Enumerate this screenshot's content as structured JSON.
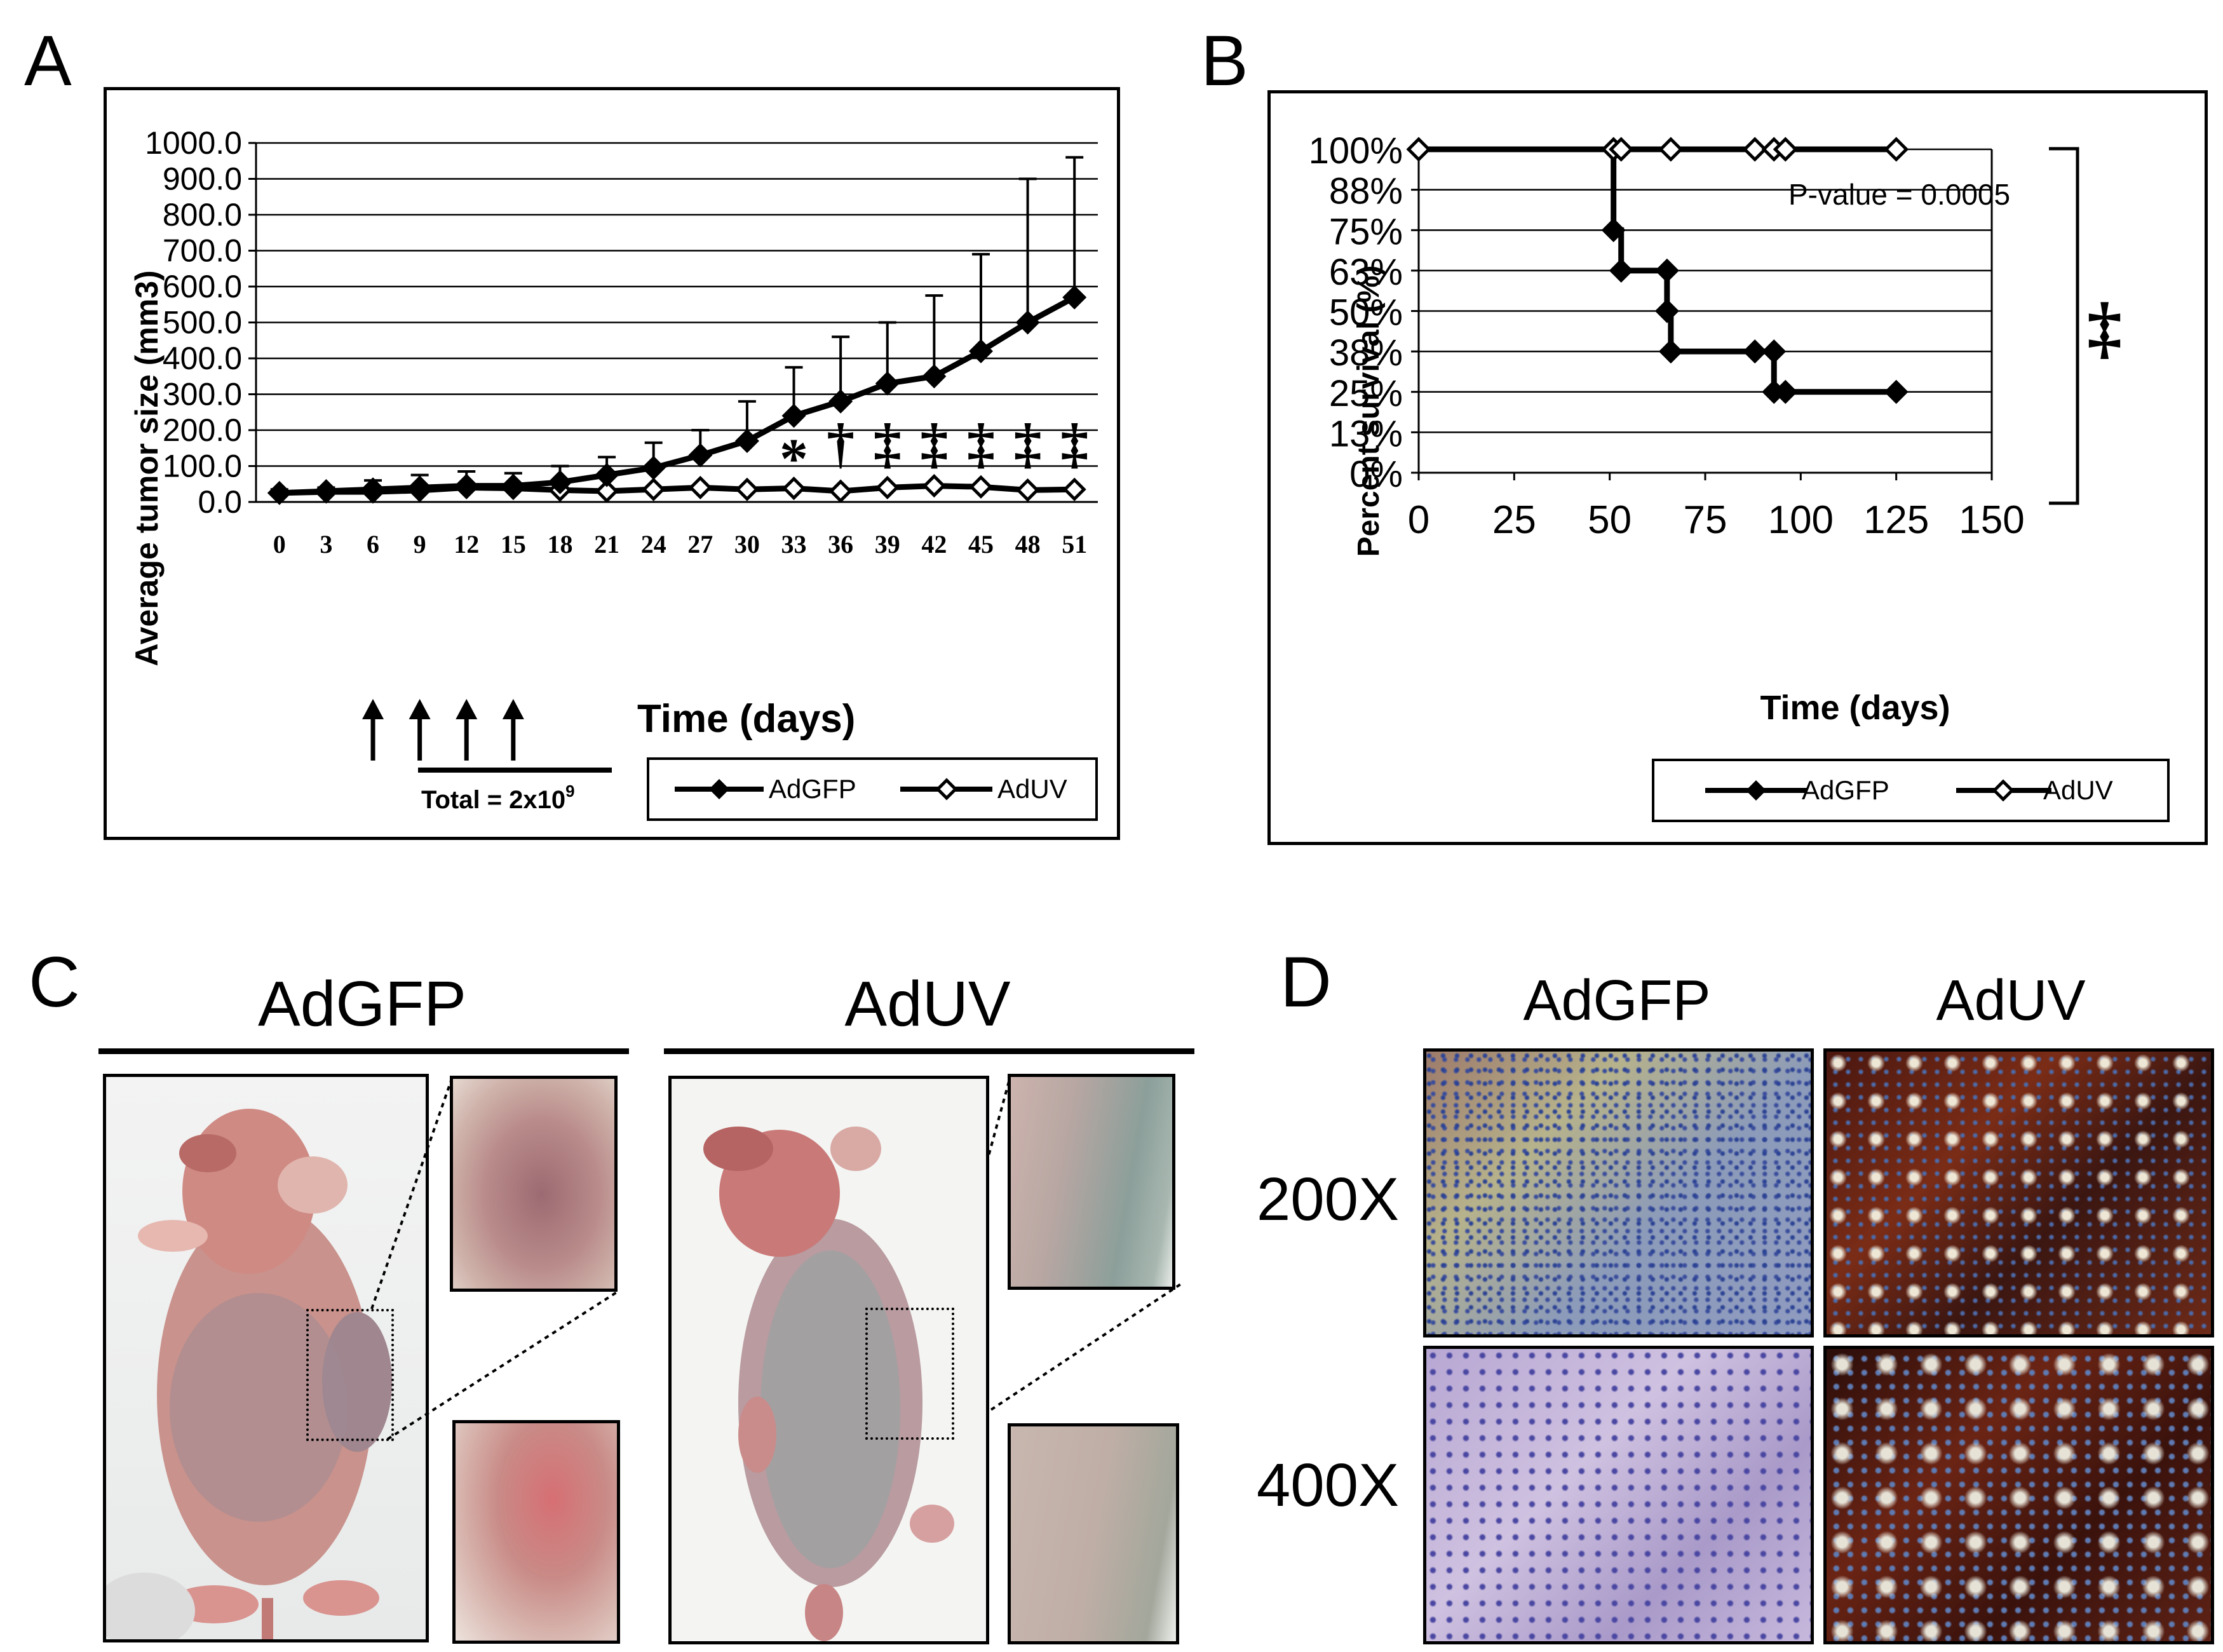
{
  "panels": {
    "A": "A",
    "B": "B",
    "C": "C",
    "D": "D"
  },
  "chart_data": [
    {
      "type": "line",
      "panel": "A",
      "ylabel": "Average tumor size (mm3)",
      "xlabel": "Time (days)",
      "categories": [
        "0",
        "3",
        "6",
        "9",
        "12",
        "15",
        "18",
        "21",
        "24",
        "27",
        "30",
        "33",
        "36",
        "39",
        "42",
        "45",
        "48",
        "51"
      ],
      "y_ticks": [
        "0.0",
        "100.0",
        "200.0",
        "300.0",
        "400.0",
        "500.0",
        "600.0",
        "700.0",
        "800.0",
        "900.0",
        "1000.0"
      ],
      "ylim": [
        0,
        1000
      ],
      "grid": true,
      "series": [
        {
          "name": "AdGFP",
          "marker": "filled-diamond",
          "values": [
            25,
            30,
            35,
            40,
            45,
            45,
            55,
            75,
            95,
            130,
            170,
            240,
            280,
            330,
            350,
            420,
            500,
            570
          ],
          "error_upper": [
            35,
            40,
            60,
            75,
            85,
            80,
            100,
            125,
            165,
            200,
            280,
            375,
            460,
            500,
            575,
            690,
            900,
            960
          ]
        },
        {
          "name": "AdUV",
          "marker": "open-diamond",
          "values": [
            25,
            28,
            28,
            32,
            40,
            38,
            33,
            30,
            35,
            40,
            35,
            38,
            30,
            40,
            45,
            42,
            33,
            35
          ]
        }
      ],
      "significance": [
        {
          "day": "33",
          "mark": "*"
        },
        {
          "day": "36",
          "mark": "†"
        },
        {
          "day": "39",
          "mark": "‡"
        },
        {
          "day": "42",
          "mark": "‡"
        },
        {
          "day": "45",
          "mark": "‡"
        },
        {
          "day": "48",
          "mark": "‡"
        },
        {
          "day": "51",
          "mark": "‡"
        }
      ],
      "injection_days": [
        "6",
        "9",
        "12",
        "15"
      ],
      "dose_label": "Total = 2x10",
      "dose_exponent": "9",
      "legend": [
        "AdGFP",
        "AdUV"
      ],
      "legend_position": "bottom-right"
    },
    {
      "type": "line",
      "subtype": "kaplan-meier",
      "panel": "B",
      "ylabel": "Percent survival (%)",
      "xlabel": "Time (days)",
      "x_ticks": [
        "0",
        "25",
        "50",
        "75",
        "100",
        "125",
        "150"
      ],
      "xlim": [
        0,
        150
      ],
      "y_ticks": [
        "0%",
        "13%",
        "25%",
        "38%",
        "50%",
        "63%",
        "75%",
        "88%",
        "100%"
      ],
      "ylim": [
        0,
        100
      ],
      "grid": true,
      "pvalue": "P-value = 0.0005",
      "significance_mark": "‡",
      "series": [
        {
          "name": "AdGFP",
          "marker": "filled-diamond",
          "steps": [
            [
              0,
              100
            ],
            [
              51,
              100
            ],
            [
              51,
              75
            ],
            [
              53,
              75
            ],
            [
              53,
              62.5
            ],
            [
              65,
              62.5
            ],
            [
              65,
              50
            ],
            [
              66,
              50
            ],
            [
              66,
              37.5
            ],
            [
              88,
              37.5
            ],
            [
              93,
              37.5
            ],
            [
              93,
              25
            ],
            [
              96,
              25
            ],
            [
              125,
              25
            ]
          ],
          "points": [
            [
              51,
              75
            ],
            [
              53,
              62.5
            ],
            [
              65,
              62.5
            ],
            [
              65,
              50
            ],
            [
              66,
              37.5
            ],
            [
              88,
              37.5
            ],
            [
              93,
              37.5
            ],
            [
              93,
              25
            ],
            [
              96,
              25
            ],
            [
              125,
              25
            ]
          ]
        },
        {
          "name": "AdUV",
          "marker": "open-diamond",
          "steps": [
            [
              0,
              100
            ],
            [
              125,
              100
            ]
          ],
          "points": [
            [
              0,
              100
            ],
            [
              51,
              100
            ],
            [
              53,
              100
            ],
            [
              66,
              100
            ],
            [
              88,
              100
            ],
            [
              93,
              100
            ],
            [
              96,
              100
            ],
            [
              125,
              100
            ]
          ]
        }
      ],
      "legend": [
        "AdGFP",
        "AdUV"
      ],
      "legend_position": "bottom-right"
    }
  ],
  "panel_C": {
    "groups": [
      "AdGFP",
      "AdUV"
    ]
  },
  "panel_D": {
    "columns": [
      "AdGFP",
      "AdUV"
    ],
    "rows": [
      "200X",
      "400X"
    ]
  },
  "colors": {
    "line": "#000000",
    "grid": "#000000",
    "background": "#ffffff",
    "skin_pink": "#c98b86",
    "stain_blue": "#3b4f9a",
    "stain_brown": "#5a1a10"
  }
}
